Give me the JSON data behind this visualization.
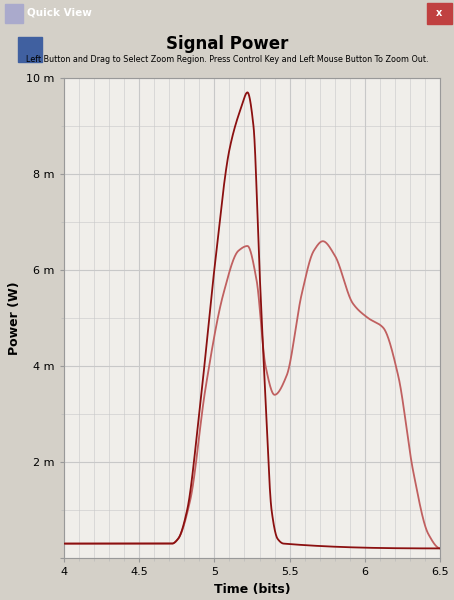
{
  "title": "Signal Power",
  "subtitle": "Left Button and Drag to Select Zoom Region. Press Control Key and Left Mouse Button To Zoom Out.",
  "xlabel": "Time (bits)",
  "ylabel": "Power (W)",
  "ylim": [
    0,
    0.01
  ],
  "xlim": [
    4.0,
    6.5
  ],
  "bg_color": "#d4d0c8",
  "plot_bg_color": "#f0eeea",
  "grid_color": "#c8c8c8",
  "line_color1": "#8b1010",
  "line_color2": "#c06060",
  "window_title": "Quick View",
  "curve1_knots_x": [
    4.0,
    4.72,
    4.76,
    4.82,
    4.9,
    5.0,
    5.1,
    5.18,
    5.22,
    5.26,
    5.3,
    5.34,
    5.38,
    5.42,
    5.46,
    6.5
  ],
  "curve1_knots_y": [
    0.0003,
    0.0003,
    0.0004,
    0.001,
    0.003,
    0.006,
    0.0085,
    0.0094,
    0.0097,
    0.009,
    0.006,
    0.0033,
    0.001,
    0.0004,
    0.0003,
    0.0002
  ],
  "curve2_knots_x": [
    4.0,
    4.72,
    4.76,
    4.84,
    4.94,
    5.06,
    5.16,
    5.22,
    5.28,
    5.34,
    5.4,
    5.48,
    5.58,
    5.66,
    5.72,
    5.8,
    5.92,
    6.02,
    6.12,
    6.22,
    6.32,
    6.42,
    6.5
  ],
  "curve2_knots_y": [
    0.0003,
    0.0003,
    0.0004,
    0.0012,
    0.0035,
    0.0055,
    0.0064,
    0.0065,
    0.0058,
    0.004,
    0.0034,
    0.0038,
    0.0055,
    0.0064,
    0.0066,
    0.0063,
    0.0053,
    0.005,
    0.0048,
    0.0038,
    0.0018,
    0.0005,
    0.0002
  ]
}
